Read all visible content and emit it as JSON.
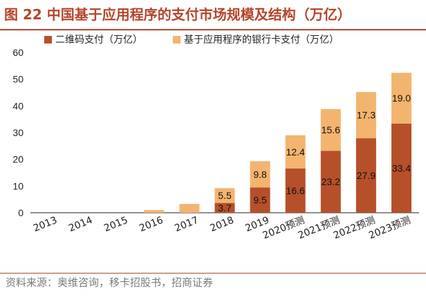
{
  "title": "图 22 中国基于应用程序的支付市场规模及结构（万亿）",
  "source": "资料来源：奥维咨询，移卡招股书，招商证券",
  "colors": {
    "accent": "#b5452a",
    "qr": "#b5502a",
    "app": "#f3b46f"
  },
  "chart_data": {
    "type": "bar",
    "stacked": true,
    "categories": [
      "2013",
      "2014",
      "2015",
      "2016",
      "2017",
      "2018",
      "2019",
      "2020预测",
      "2021预测",
      "2022预测",
      "2023预测"
    ],
    "series": [
      {
        "name": "二维码支付（万亿）",
        "values": [
          0,
          0,
          0,
          0,
          0,
          3.7,
          9.5,
          16.6,
          23.2,
          27.9,
          33.4
        ],
        "labels": [
          "",
          "",
          "",
          "",
          "",
          "3.7",
          "9.5",
          "16.6",
          "23.2",
          "27.9",
          "33.4"
        ]
      },
      {
        "name": "基于应用程序的银行卡支付（万亿）",
        "values": [
          0,
          0,
          0,
          1.0,
          3.3,
          5.5,
          9.8,
          12.4,
          15.6,
          17.3,
          19.0
        ],
        "labels": [
          "",
          "",
          "",
          "",
          "",
          "5.5",
          "9.8",
          "12.4",
          "15.6",
          "17.3",
          "19.0"
        ]
      }
    ],
    "yticks": [
      0,
      10,
      20,
      30,
      40,
      50,
      60
    ],
    "ylim": [
      0,
      60
    ],
    "legend": "top",
    "grid": false
  }
}
